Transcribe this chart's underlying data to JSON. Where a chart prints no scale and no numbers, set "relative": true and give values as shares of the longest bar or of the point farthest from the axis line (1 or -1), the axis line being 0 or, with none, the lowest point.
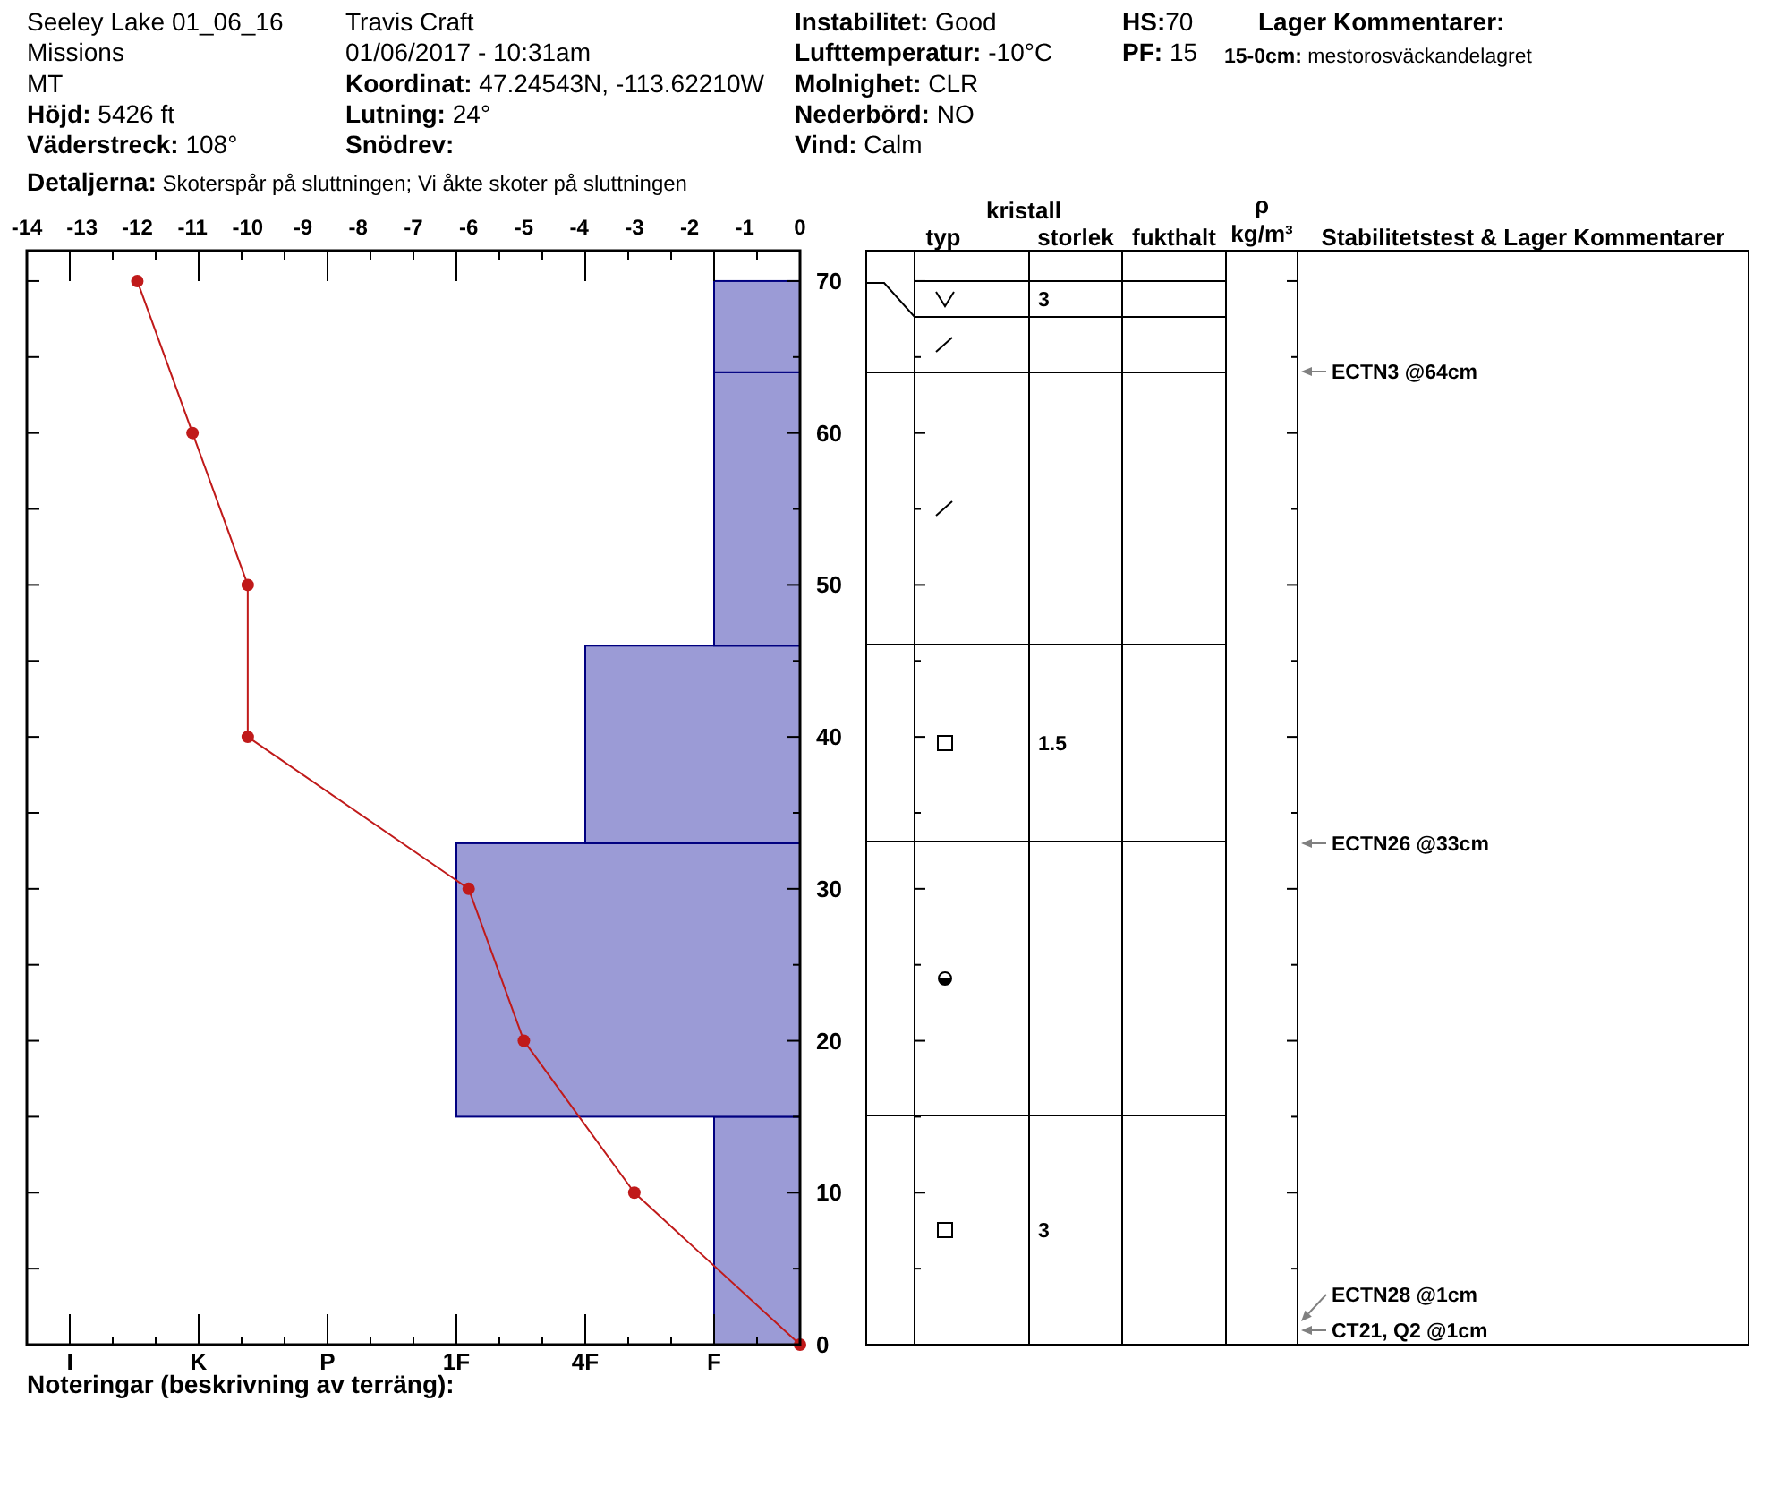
{
  "chart_data": [
    {
      "type": "bar",
      "orientation": "horizontal",
      "relative": true,
      "x": [
        7.5,
        24,
        39.5,
        55,
        67
      ],
      "values": [
        -0.25,
        -1,
        -0.625,
        -0.25,
        -0.25
      ],
      "color": "#9b9bd6",
      "ylim": [
        0,
        72
      ],
      "yticks": [
        0,
        {
          "value": 5,
          "label": null
        },
        10,
        {
          "value": 15,
          "label": null
        },
        20,
        {
          "value": 25,
          "label": null
        },
        30,
        {
          "value": 35,
          "label": null
        },
        40,
        {
          "value": 45,
          "label": null
        },
        50,
        {
          "value": 55,
          "label": null
        },
        60,
        {
          "value": 65,
          "label": null
        },
        70
      ],
      "annotations": [
        "Seeley Lake 01_06_16",
        "Missions",
        "MT",
        "Höjd: 5426 ft",
        "Väderstreck: 108°",
        "Detaljerna: Skoterspår på sluttningen; Vi åkte skoter på sluttningen",
        "Travis Craft",
        "01/06/2017 - 10:31am",
        "Koordinat: 47.24543N, -113.62210W",
        "Lutning: 24°",
        "Snödrev:",
        "Instabilitet: Good",
        "Lufttemperatur: -10°C",
        "Molnighet: CLR",
        "Nederbörd: NO",
        "Vind: Calm",
        "HS:70",
        "PF: 15",
        "Lager Kommentarer:",
        "15-0cm: mestorosväckandelagret",
        "Noteringar (beskrivning av terräng):",
        "kristall",
        "typ",
        "storlek",
        "fukthalt",
        "ρ",
        "kg/m³",
        "Stabilitetstest & Lager Kommentarer",
        "3",
        "1.5",
        "3",
        "ECTN3 @64cm",
        "ECTN26 @33cm",
        "ECTN28 @1cm",
        "CT21, Q2 @1cm",
        "I",
        "K",
        "P",
        "1F",
        "4F",
        "F"
      ]
    },
    {
      "type": "line",
      "orientation": "horizontal",
      "series": [
        {
          "axis": "x2",
          "color": "#c01a1a",
          "marker": "circle",
          "x": [
            70,
            60,
            50,
            40,
            30,
            20,
            10,
            0
          ],
          "values": [
            -12,
            -11,
            -10,
            -10,
            -6,
            -5,
            -3,
            0
          ]
        }
      ],
      "x2lim": [
        -14,
        0
      ],
      "x2ticks": [
        -14,
        -13,
        -12,
        -11,
        -10,
        -9,
        -8,
        -7,
        -6,
        -5,
        -4,
        -3,
        -2,
        -1,
        0
      ],
      "ylim": [
        0,
        72
      ],
      "tick_labels": "x"
    }
  ]
}
